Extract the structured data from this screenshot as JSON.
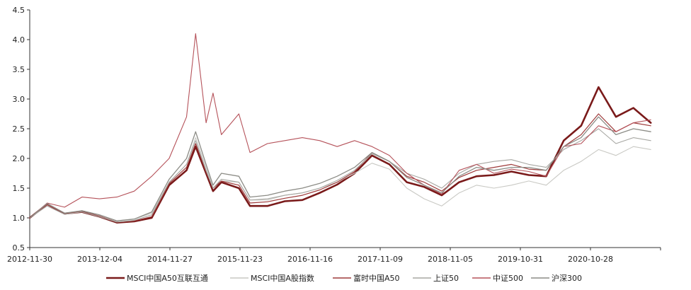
{
  "chart_data": {
    "type": "line",
    "title": "",
    "xlabel": "",
    "ylabel": "",
    "x_ticks": [
      "2012-11-30",
      "2013-12-04",
      "2014-11-27",
      "2015-11-23",
      "2016-11-16",
      "2017-11-09",
      "2018-11-05",
      "2019-10-31",
      "2020-10-28"
    ],
    "ylim": [
      0.5,
      4.5
    ],
    "y_ticks": [
      "0.5",
      "1.0",
      "1.5",
      "2.0",
      "2.5",
      "3.0",
      "3.5",
      "4.0",
      "4.5"
    ],
    "grid": false,
    "legend_position": "bottom",
    "x": [
      2012.92,
      2013.17,
      2013.42,
      2013.67,
      2013.92,
      2014.17,
      2014.42,
      2014.67,
      2014.92,
      2015.17,
      2015.3,
      2015.45,
      2015.55,
      2015.67,
      2015.92,
      2016.08,
      2016.33,
      2016.58,
      2016.83,
      2017.08,
      2017.33,
      2017.58,
      2017.83,
      2018.08,
      2018.33,
      2018.58,
      2018.83,
      2019.08,
      2019.33,
      2019.58,
      2019.83,
      2020.08,
      2020.33,
      2020.58,
      2020.83,
      2021.08,
      2021.33,
      2021.58,
      2021.83
    ],
    "series": [
      {
        "name": "MSCI中国A50互联互通",
        "color": "#7a1a1a",
        "width": 2.6,
        "values": [
          1.0,
          1.23,
          1.07,
          1.1,
          1.02,
          0.92,
          0.94,
          1.0,
          1.55,
          1.8,
          2.2,
          1.75,
          1.45,
          1.6,
          1.5,
          1.2,
          1.2,
          1.28,
          1.3,
          1.42,
          1.56,
          1.75,
          2.05,
          1.9,
          1.6,
          1.52,
          1.38,
          1.6,
          1.7,
          1.72,
          1.78,
          1.72,
          1.7,
          2.3,
          2.55,
          3.2,
          2.7,
          2.85,
          2.6
        ]
      },
      {
        "name": "MSCI中国A股指数",
        "color": "#c9c9c4",
        "width": 1.1,
        "values": [
          1.0,
          1.22,
          1.08,
          1.12,
          1.05,
          0.95,
          0.98,
          1.08,
          1.6,
          1.9,
          2.35,
          1.85,
          1.5,
          1.62,
          1.6,
          1.3,
          1.3,
          1.38,
          1.42,
          1.5,
          1.6,
          1.75,
          1.92,
          1.82,
          1.5,
          1.32,
          1.2,
          1.42,
          1.55,
          1.5,
          1.55,
          1.62,
          1.55,
          1.8,
          1.95,
          2.15,
          2.05,
          2.2,
          2.15
        ]
      },
      {
        "name": "富时中国A50",
        "color": "#9e3a3a",
        "width": 1.2,
        "values": [
          1.0,
          1.22,
          1.08,
          1.1,
          1.03,
          0.93,
          0.95,
          1.02,
          1.58,
          1.85,
          2.25,
          1.78,
          1.5,
          1.62,
          1.55,
          1.25,
          1.27,
          1.33,
          1.38,
          1.47,
          1.6,
          1.78,
          2.1,
          1.95,
          1.7,
          1.6,
          1.45,
          1.68,
          1.8,
          1.85,
          1.9,
          1.82,
          1.8,
          2.2,
          2.4,
          2.75,
          2.45,
          2.6,
          2.55
        ]
      },
      {
        "name": "上证50",
        "color": "#a7a7a2",
        "width": 1.1,
        "values": [
          1.0,
          1.2,
          1.06,
          1.1,
          1.02,
          0.93,
          0.96,
          1.05,
          1.6,
          1.9,
          2.3,
          1.8,
          1.5,
          1.65,
          1.6,
          1.3,
          1.32,
          1.38,
          1.42,
          1.5,
          1.63,
          1.8,
          2.08,
          1.95,
          1.75,
          1.65,
          1.5,
          1.75,
          1.9,
          1.95,
          1.98,
          1.9,
          1.85,
          2.15,
          2.3,
          2.5,
          2.25,
          2.35,
          2.3
        ]
      },
      {
        "name": "中证500",
        "color": "#b5525a",
        "width": 1.1,
        "values": [
          1.0,
          1.25,
          1.18,
          1.35,
          1.32,
          1.35,
          1.45,
          1.7,
          2.0,
          2.7,
          4.1,
          2.6,
          3.1,
          2.4,
          2.75,
          2.1,
          2.25,
          2.3,
          2.35,
          2.3,
          2.2,
          2.3,
          2.2,
          2.05,
          1.75,
          1.55,
          1.4,
          1.8,
          1.9,
          1.75,
          1.82,
          1.78,
          1.7,
          2.2,
          2.25,
          2.55,
          2.45,
          2.6,
          2.65
        ]
      },
      {
        "name": "沪深300",
        "color": "#8c8c86",
        "width": 1.3,
        "values": [
          1.0,
          1.24,
          1.08,
          1.12,
          1.05,
          0.95,
          0.98,
          1.1,
          1.65,
          2.0,
          2.45,
          1.9,
          1.55,
          1.75,
          1.7,
          1.35,
          1.38,
          1.45,
          1.5,
          1.58,
          1.7,
          1.85,
          2.1,
          1.95,
          1.68,
          1.55,
          1.42,
          1.7,
          1.85,
          1.8,
          1.85,
          1.85,
          1.8,
          2.2,
          2.35,
          2.7,
          2.4,
          2.5,
          2.45
        ]
      }
    ]
  }
}
